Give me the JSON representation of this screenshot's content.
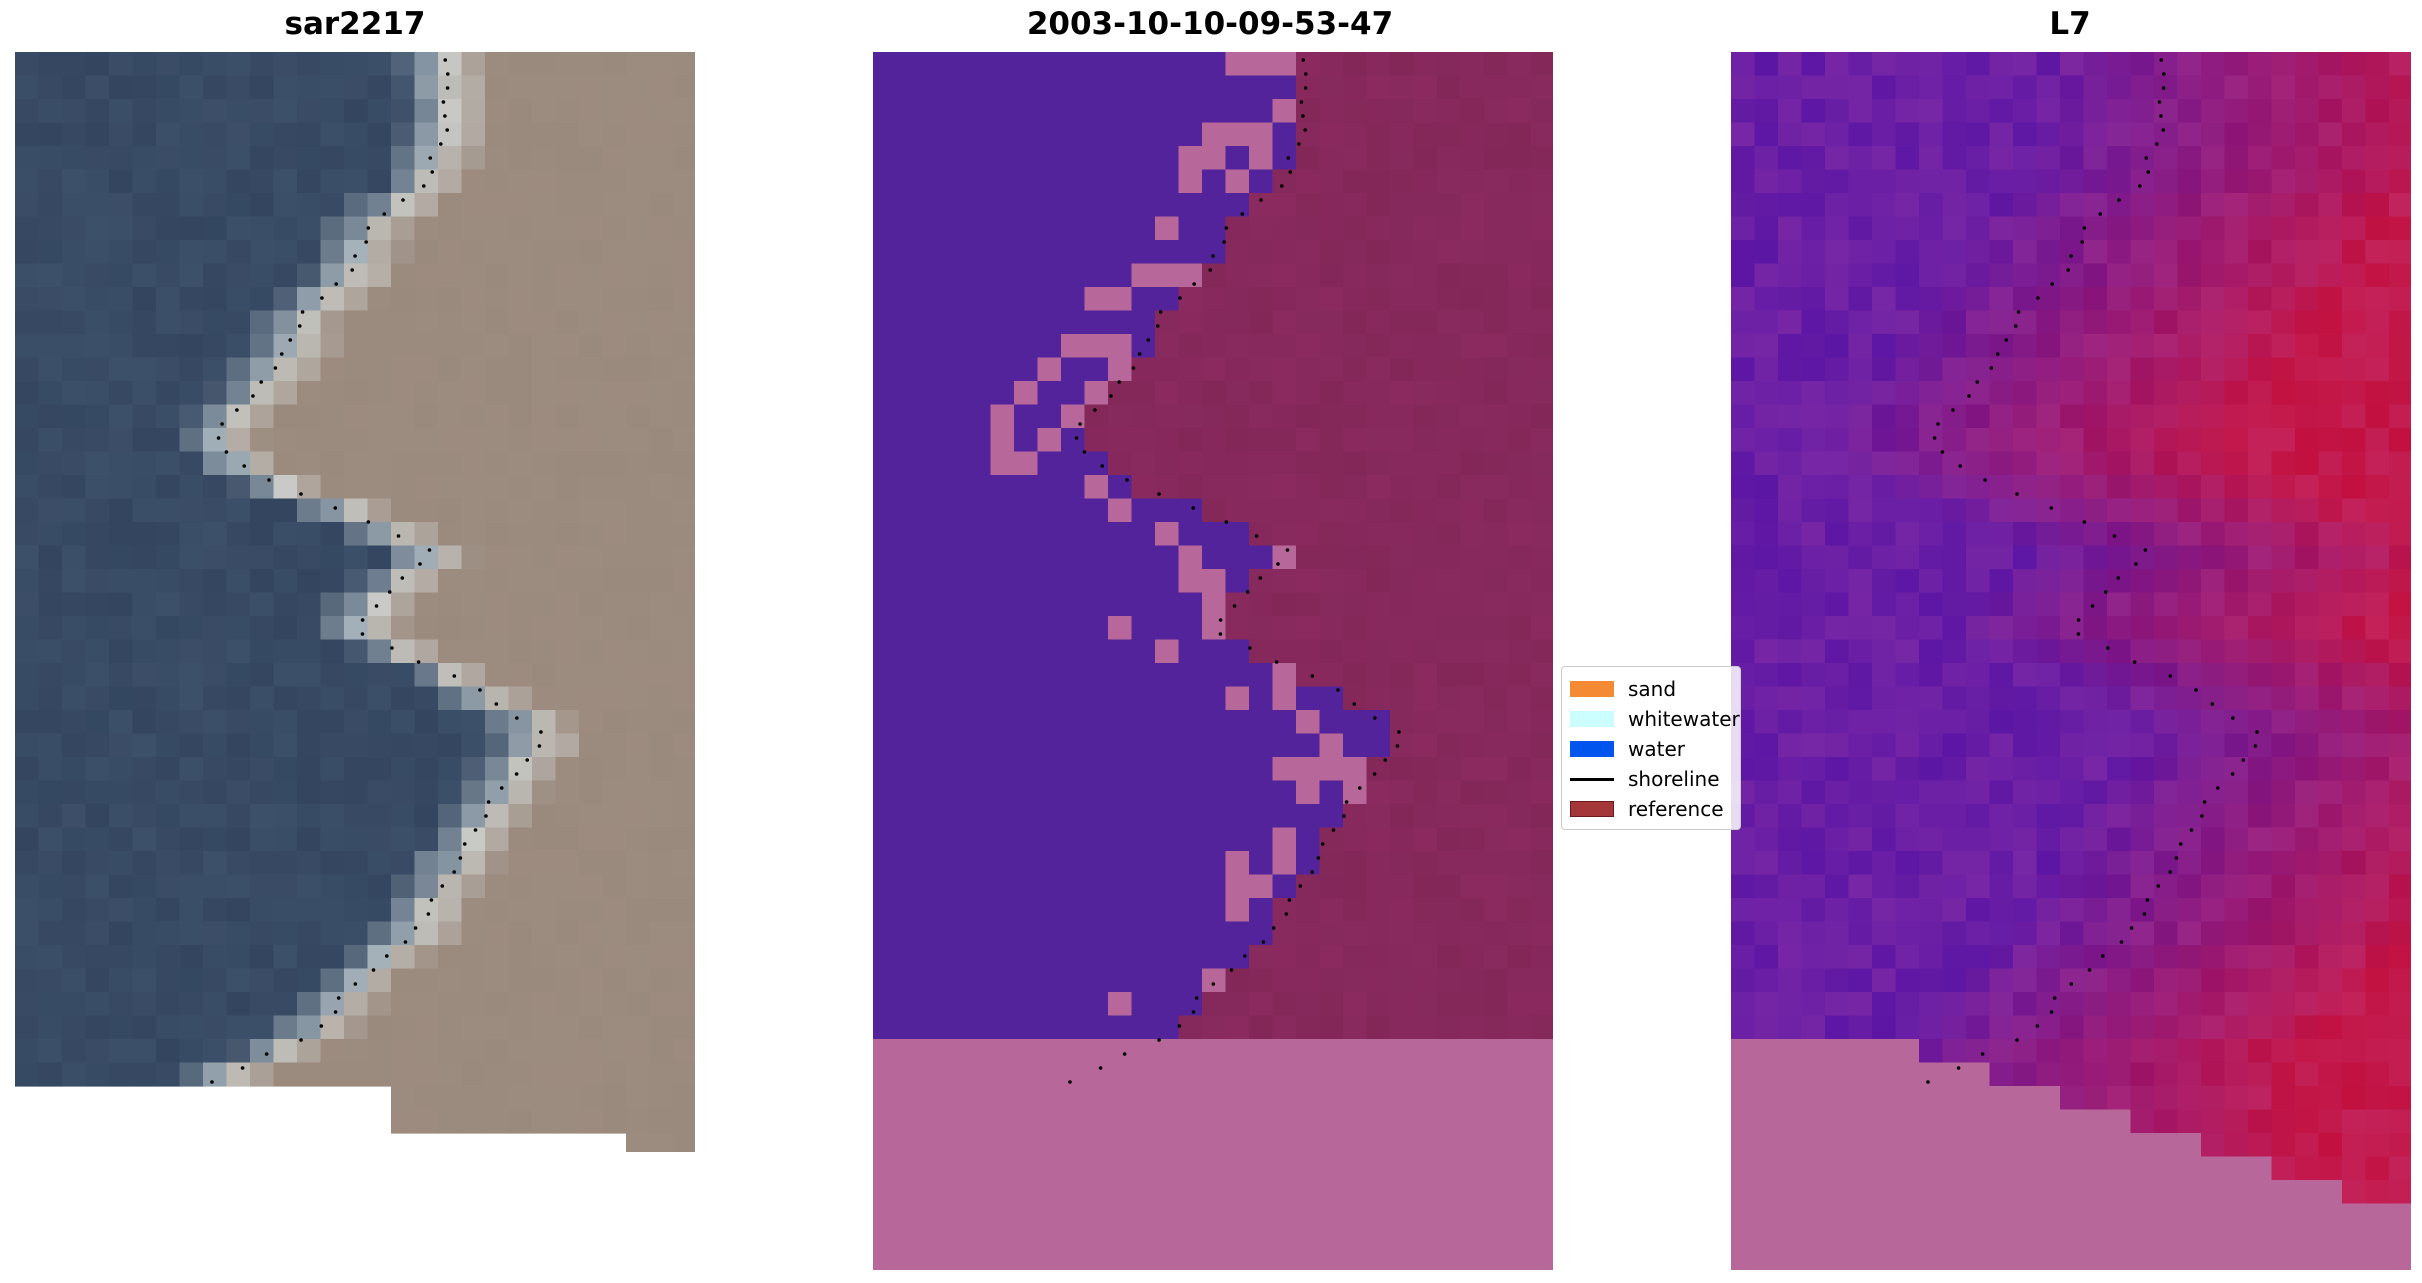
{
  "panels": [
    {
      "title": "sar2217"
    },
    {
      "title": "2003-10-10-09-53-47"
    },
    {
      "title": "L7"
    }
  ],
  "legend": {
    "items": [
      {
        "label": "sand",
        "kind": "patch",
        "color": "#f58a35"
      },
      {
        "label": "whitewater",
        "kind": "patch",
        "color": "#ccffff"
      },
      {
        "label": "water",
        "kind": "patch",
        "color": "#0055ee"
      },
      {
        "label": "shoreline",
        "kind": "line",
        "color": "#000000"
      },
      {
        "label": "reference",
        "kind": "patch",
        "color": "#a3373a"
      }
    ]
  },
  "colors": {
    "ocean_rgb": "#34465f",
    "land_rgb": "#9a8a7e",
    "classified_water": "#52239a",
    "classified_land": "#8a2a5f",
    "nodata": "#b8679a",
    "index_water": "#5c16a4",
    "index_land": "#c2103f"
  }
}
